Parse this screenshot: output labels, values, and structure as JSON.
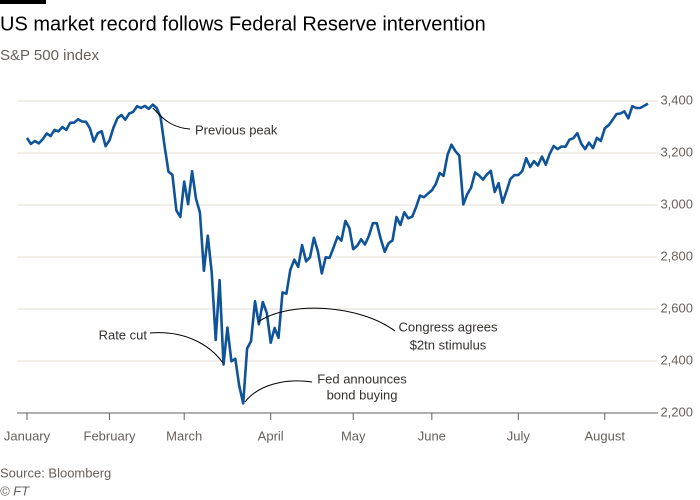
{
  "chart_data": {
    "type": "line",
    "title": "US market record follows Federal Reserve intervention",
    "subtitle": "S&P 500 index",
    "source": "Source: Bloomberg",
    "copyright": "© FT",
    "categories": [
      "January",
      null,
      null,
      null,
      null,
      null,
      null,
      null,
      null,
      null,
      null,
      null,
      null,
      null,
      null,
      null,
      null,
      null,
      null,
      null,
      null,
      "February",
      null,
      null,
      null,
      null,
      null,
      null,
      null,
      null,
      null,
      null,
      null,
      null,
      null,
      null,
      null,
      null,
      null,
      null,
      "March",
      null,
      null,
      null,
      null,
      null,
      null,
      null,
      null,
      null,
      null,
      null,
      null,
      null,
      null,
      null,
      null,
      null,
      null,
      null,
      null,
      null,
      "April",
      null,
      null,
      null,
      null,
      null,
      null,
      null,
      null,
      null,
      null,
      null,
      null,
      null,
      null,
      null,
      null,
      null,
      null,
      null,
      null,
      "May",
      null,
      null,
      null,
      null,
      null,
      null,
      null,
      null,
      null,
      null,
      null,
      null,
      null,
      null,
      null,
      null,
      null,
      null,
      null,
      "June",
      null,
      null,
      null,
      null,
      null,
      null,
      null,
      null,
      null,
      null,
      null,
      null,
      null,
      null,
      null,
      null,
      null,
      null,
      null,
      null,
      null,
      "July",
      null,
      null,
      null,
      null,
      null,
      null,
      null,
      null,
      null,
      null,
      null,
      null,
      null,
      null,
      null,
      null,
      null,
      null,
      null,
      null,
      null,
      "August",
      null,
      null,
      null,
      null,
      null,
      null,
      null,
      null,
      null,
      null,
      null
    ],
    "series": [
      {
        "name": "S&P 500 index",
        "color": "#0f5499",
        "values": [
          3258,
          3235,
          3246,
          3237,
          3253,
          3275,
          3265,
          3289,
          3283,
          3300,
          3289,
          3316,
          3317,
          3330,
          3321,
          3320,
          3295,
          3244,
          3276,
          3284,
          3226,
          3249,
          3298,
          3334,
          3346,
          3328,
          3352,
          3358,
          3380,
          3373,
          3381,
          3370,
          3386,
          3373,
          3338,
          3226,
          3128,
          3116,
          2979,
          2954,
          3090,
          3003,
          3130,
          3024,
          2972,
          2747,
          2882,
          2741,
          2481,
          2711,
          2386,
          2529,
          2399,
          2409,
          2305,
          2237,
          2448,
          2476,
          2630,
          2541,
          2627,
          2585,
          2470,
          2527,
          2489,
          2664,
          2659,
          2750,
          2790,
          2762,
          2846,
          2783,
          2799,
          2874,
          2823,
          2737,
          2799,
          2797,
          2837,
          2878,
          2863,
          2939,
          2912,
          2830,
          2843,
          2868,
          2848,
          2881,
          2930,
          2930,
          2870,
          2820,
          2853,
          2864,
          2954,
          2923,
          2972,
          2949,
          2955,
          2992,
          3036,
          3030,
          3044,
          3056,
          3081,
          3123,
          3112,
          3194,
          3232,
          3207,
          3190,
          3002,
          3041,
          3067,
          3125,
          3114,
          3098,
          3117,
          3131,
          3050,
          3084,
          3009,
          3053,
          3100,
          3115,
          3115,
          3130,
          3180,
          3146,
          3169,
          3152,
          3186,
          3155,
          3197,
          3227,
          3215,
          3225,
          3224,
          3251,
          3257,
          3276,
          3236,
          3215,
          3240,
          3219,
          3258,
          3246,
          3295,
          3307,
          3328,
          3350,
          3352,
          3360,
          3333,
          3380,
          3373,
          3373,
          3381,
          3390
        ]
      }
    ],
    "ylim": [
      2200,
      3400
    ],
    "yticks": [
      {
        "value": 2200,
        "label": "2,200"
      },
      {
        "value": 2400,
        "label": "2,400"
      },
      {
        "value": 2600,
        "label": "2,600"
      },
      {
        "value": 2800,
        "label": "2,800"
      },
      {
        "value": 3000,
        "label": "3,000"
      },
      {
        "value": 3200,
        "label": "3,200"
      },
      {
        "value": 3400,
        "label": "3,400"
      }
    ],
    "grid": true,
    "annotations": [
      [
        "Previous peak"
      ],
      [
        "Rate cut"
      ],
      [
        "Congress agrees",
        "$2tn stimulus"
      ],
      [
        "Fed announces",
        "bond buying"
      ]
    ]
  }
}
